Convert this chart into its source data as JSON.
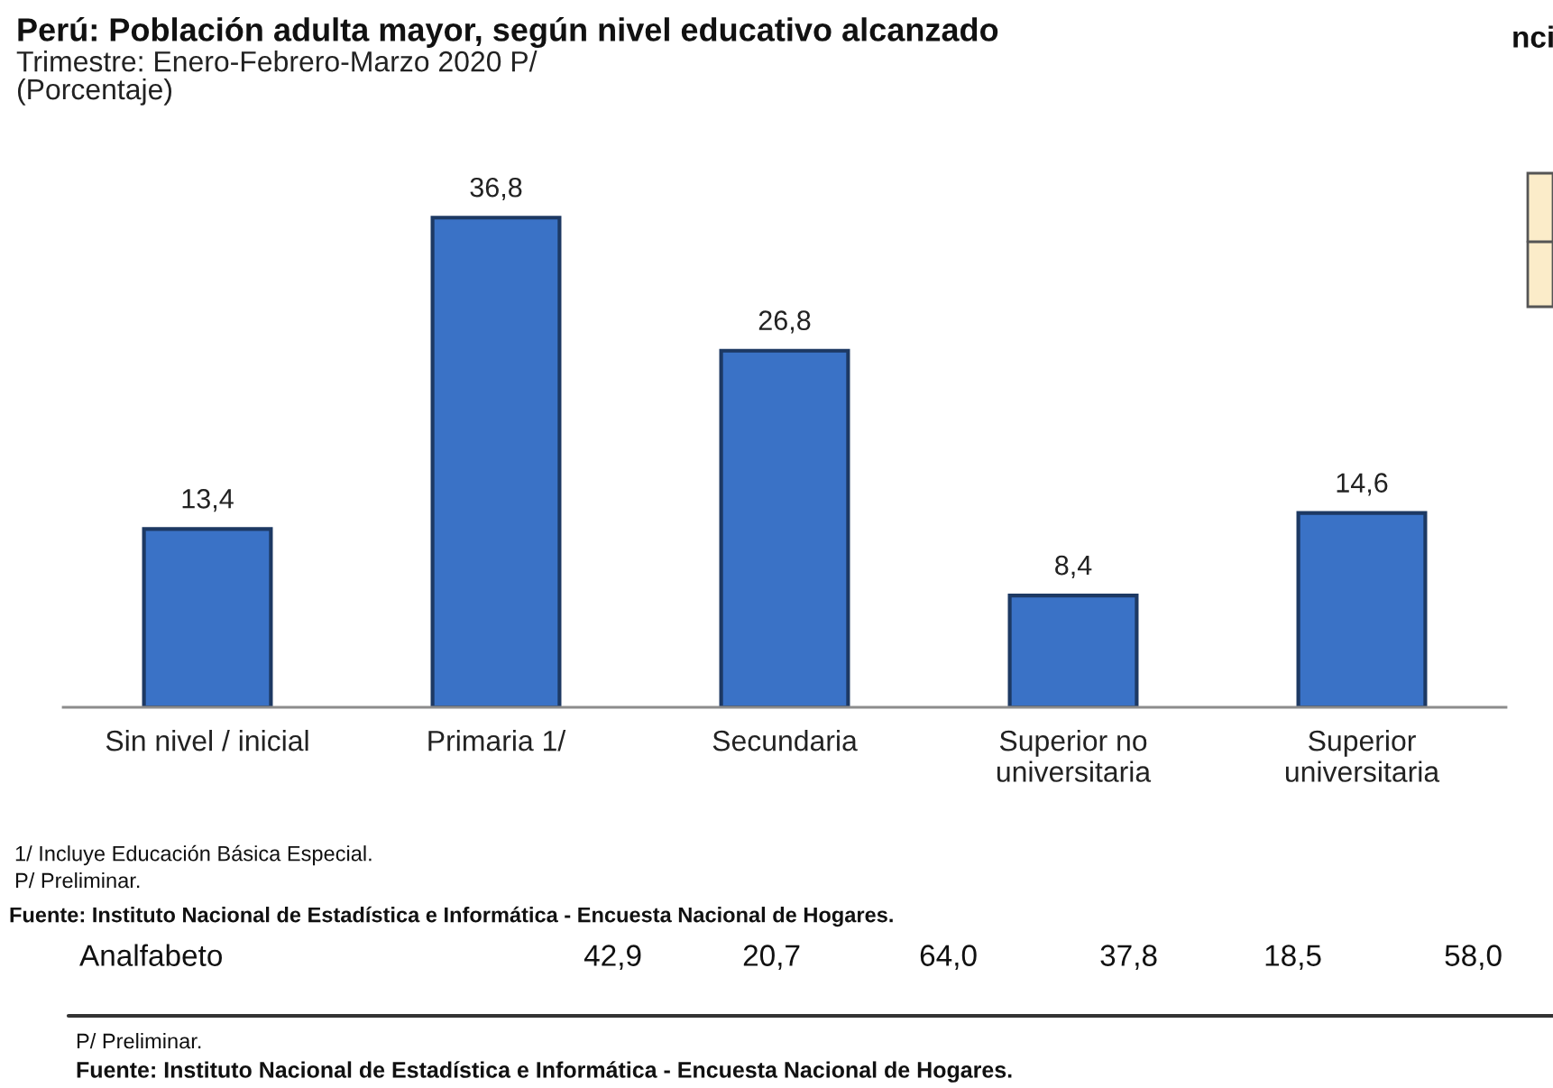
{
  "chart_data": {
    "type": "bar",
    "title": "Perú: Población adulta mayor, según nivel educativo alcanzado",
    "subtitle": "Trimestre: Enero-Febrero-Marzo 2020 P/\n(Porcentaje)",
    "categories": [
      "Sin nivel / inicial",
      "Primaria 1/",
      "Secundaria",
      "Superior no\nuniversitaria",
      "Superior\nuniversitaria"
    ],
    "values": [
      13.4,
      36.8,
      26.8,
      8.4,
      14.6
    ],
    "value_labels": [
      "13,4",
      "36,8",
      "26,8",
      "8,4",
      "14,6"
    ],
    "color": "#3a72c6",
    "tick_labels": "x",
    "annotations": [
      "1/ Incluye Educación Básica Especial.",
      "P/ Preliminar.",
      "Fuente: Instituto Nacional de Estadística e Informática - Encuesta Nacional de Hogares.",
      "Analfabeto",
      "42,9",
      "20,7",
      "64,0",
      "37,8",
      "18,5",
      "58,0",
      "P/ Preliminar.",
      "Fuente: Instituto Nacional de Estadística e Informática - Encuesta Nacional de Hogares.",
      "nci"
    ]
  }
}
